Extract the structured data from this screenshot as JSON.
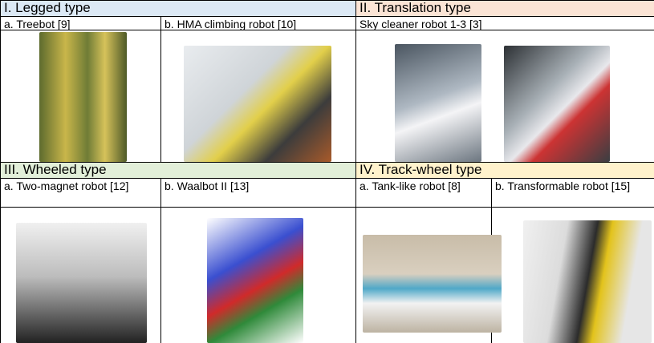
{
  "sections": [
    {
      "title": "I. Legged type",
      "items": [
        "a. Treebot [9]",
        "b. HMA climbing robot [10]"
      ]
    },
    {
      "title": "II. Translation type",
      "items": [
        "Sky cleaner robot 1-3 [3]"
      ]
    },
    {
      "title": "III. Wheeled type",
      "items": [
        "a. Two-magnet robot [12]",
        "b. Waalbot II [13]"
      ]
    },
    {
      "title": "IV. Track-wheel type",
      "items": [
        "a. Tank-like robot [8]",
        "b. Transformable robot [15]"
      ]
    }
  ]
}
